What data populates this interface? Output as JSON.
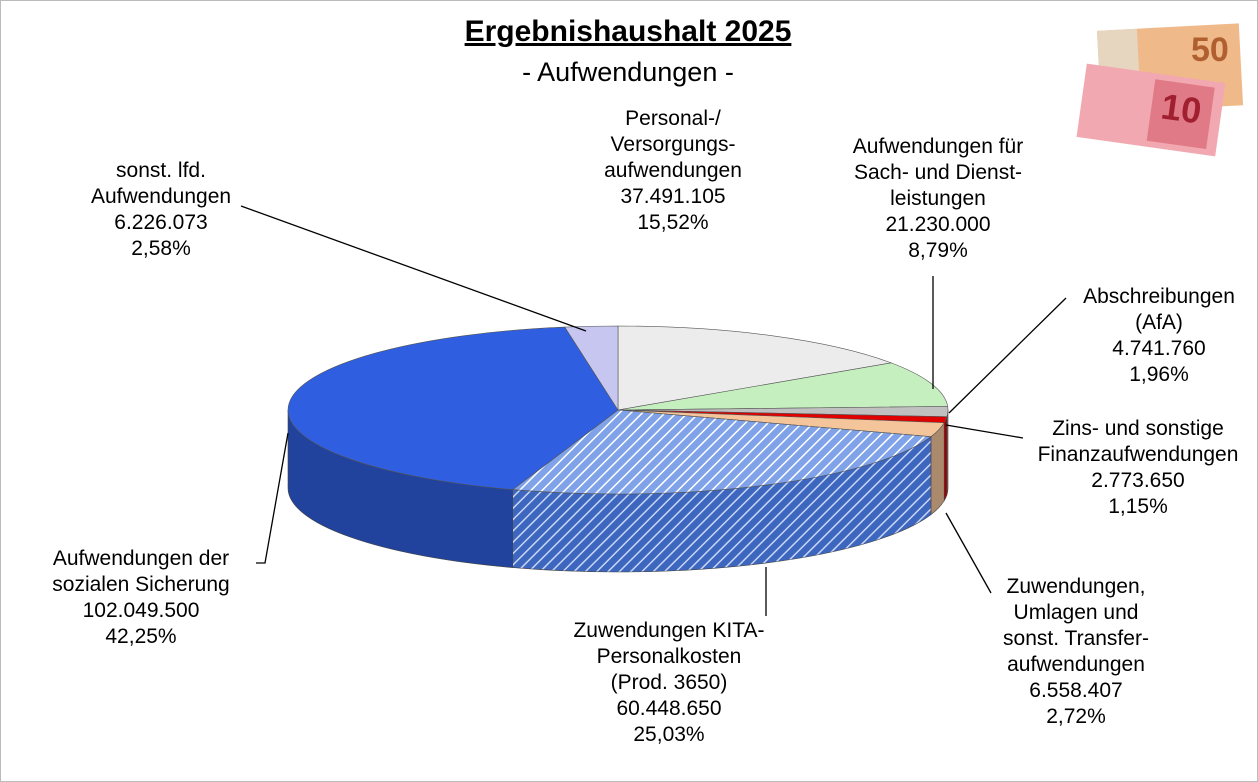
{
  "chart_data": {
    "type": "pie3d",
    "title": "Ergebnishaushalt 2025",
    "subtitle": "- Aufwendungen -",
    "categories": [
      "Personal-/\nVersorgungs-\naufwendungen",
      "Aufwendungen für\nSach- und Dienst-\nleistungen",
      "Abschreibungen\n(AfA)",
      "Zins- und sonstige\nFinanzaufwendungen",
      "Zuwendungen,\nUmlagen und\nsonst. Transfer-\naufwendungen",
      "Zuwendungen KITA-\nPersonalkosten\n(Prod. 3650)",
      "Aufwendungen der\nsozialen Sicherung",
      "sonst. lfd.\nAufwendungen"
    ],
    "values": [
      37491105,
      21230000,
      4741760,
      2773650,
      6558407,
      60448650,
      102049500,
      6226073
    ],
    "value_labels": [
      "37.491.105",
      "21.230.000",
      "4.741.760",
      "2.773.650",
      "6.558.407",
      "60.448.650",
      "102.049.500",
      "6.226.073"
    ],
    "percentages": [
      15.52,
      8.79,
      1.96,
      1.15,
      2.72,
      25.03,
      42.25,
      2.58
    ],
    "percentage_labels": [
      "15,52%",
      "8,79%",
      "1,96%",
      "1,15%",
      "2,72%",
      "25,03%",
      "42,25%",
      "2,58%"
    ],
    "colors": [
      "#ececec",
      "#c6efc0",
      "#c0c0c0",
      "#e00000",
      "#f4c49a",
      "#7fa2e8",
      "#2f5fe0",
      "#c6c6f0"
    ],
    "hatched": [
      false,
      false,
      false,
      false,
      false,
      true,
      false,
      false
    ]
  }
}
